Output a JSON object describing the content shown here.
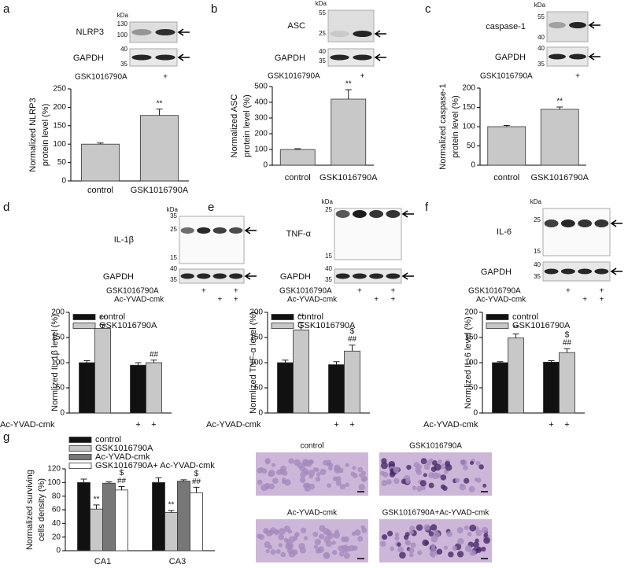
{
  "chart_data": [
    {
      "panel": "a",
      "type": "bar",
      "ylabel": [
        "Normalized NLRP3",
        "protein level (%)"
      ],
      "categories": [
        "control",
        "GSK1016790A"
      ],
      "values": [
        100,
        178
      ],
      "errors": [
        3,
        17
      ],
      "labels": [
        [],
        [
          "**"
        ]
      ],
      "color": "#c8c8c8",
      "ylim": [
        0,
        250
      ],
      "yticks": [
        0,
        50,
        100,
        150,
        200,
        250
      ]
    },
    {
      "panel": "b",
      "type": "bar",
      "ylabel": [
        "Normalized ASC",
        "protein level (%)"
      ],
      "categories": [
        "control",
        "GSK1016790A"
      ],
      "values": [
        100,
        420
      ],
      "errors": [
        5,
        60
      ],
      "labels": [
        [],
        [
          "**"
        ]
      ],
      "color": "#c8c8c8",
      "ylim": [
        0,
        500
      ],
      "yticks": [
        0,
        100,
        200,
        300,
        400,
        500
      ]
    },
    {
      "panel": "c",
      "type": "bar",
      "ylabel": [
        "Normalized caspase-1",
        "protein level (%)"
      ],
      "categories": [
        "control",
        "GSK1016790A"
      ],
      "values": [
        100,
        145
      ],
      "errors": [
        3,
        6
      ],
      "labels": [
        [],
        [
          "**"
        ]
      ],
      "color": "#c8c8c8",
      "ylim": [
        0,
        200
      ],
      "yticks": [
        0,
        50,
        100,
        150,
        200
      ]
    },
    {
      "panel": "d",
      "type": "bar",
      "ylabel": [
        "Normlized IL-1β level (%)"
      ],
      "categories": [
        null,
        null
      ],
      "series": [
        {
          "name": "control",
          "color": "#111111",
          "values": [
            100,
            95
          ],
          "errors": [
            4,
            5
          ],
          "labels": [
            [],
            []
          ]
        },
        {
          "name": "GSK1016790A",
          "color": "#c8c8c8",
          "values": [
            168,
            100
          ],
          "errors": [
            8,
            5
          ],
          "labels": [
            [
              "**"
            ],
            [
              "##"
            ]
          ]
        }
      ],
      "treatment": "Ac-YVAD-cmk",
      "treatment_marks": [
        [
          null,
          null
        ],
        [
          "+",
          "+"
        ]
      ],
      "ylim": [
        0,
        200
      ],
      "yticks": [
        0,
        50,
        100,
        150,
        200
      ]
    },
    {
      "panel": "e",
      "type": "bar",
      "ylabel": [
        "Normlized TNF-α level (%)"
      ],
      "categories": [
        null,
        null
      ],
      "series": [
        {
          "name": "control",
          "color": "#111111",
          "values": [
            100,
            96
          ],
          "errors": [
            5,
            6
          ],
          "labels": [
            [],
            []
          ]
        },
        {
          "name": "GSK1016790A",
          "color": "#c8c8c8",
          "values": [
            165,
            123
          ],
          "errors": [
            15,
            12
          ],
          "labels": [
            [
              "**"
            ],
            [
              "$",
              "##"
            ]
          ]
        }
      ],
      "treatment": "Ac-YVAD-cmk",
      "treatment_marks": [
        [
          null,
          null
        ],
        [
          "+",
          "+"
        ]
      ],
      "ylim": [
        0,
        200
      ],
      "yticks": [
        0,
        50,
        100,
        150,
        200
      ]
    },
    {
      "panel": "f",
      "type": "bar",
      "ylabel": [
        "Normlized IL-6 level (%)"
      ],
      "categories": [
        null,
        null
      ],
      "series": [
        {
          "name": "control",
          "color": "#111111",
          "values": [
            100,
            101
          ],
          "errors": [
            2,
            3
          ],
          "labels": [
            [],
            []
          ]
        },
        {
          "name": "GSK1016790A",
          "color": "#c8c8c8",
          "values": [
            149,
            120
          ],
          "errors": [
            8,
            8
          ],
          "labels": [
            [
              "**"
            ],
            [
              "$",
              "##"
            ]
          ]
        }
      ],
      "treatment": "Ac-YVAD-cmk",
      "treatment_marks": [
        [
          null,
          null
        ],
        [
          "+",
          "+"
        ]
      ],
      "ylim": [
        0,
        200
      ],
      "yticks": [
        0,
        50,
        100,
        150,
        200
      ]
    },
    {
      "panel": "g",
      "type": "bar",
      "ylabel": [
        "Normalized surviving",
        "cells density (%)"
      ],
      "categories": [
        "CA1",
        "CA3"
      ],
      "series": [
        {
          "name": "control",
          "color": "#111111",
          "values": [
            100,
            100
          ],
          "errors": [
            5,
            7
          ],
          "labels": [
            [],
            []
          ]
        },
        {
          "name": "GSK1016790A",
          "color": "#c8c8c8",
          "values": [
            61,
            56
          ],
          "errors": [
            6,
            3
          ],
          "labels": [
            [
              "**"
            ],
            [
              "**"
            ]
          ]
        },
        {
          "name": "Ac-YVAD-cmk",
          "color": "#777777",
          "values": [
            99,
            102
          ],
          "errors": [
            2,
            2
          ],
          "labels": [
            [],
            []
          ]
        },
        {
          "name": "GSK1016790A+ Ac-YVAD-cmk",
          "color": "#ffffff",
          "values": [
            89,
            85
          ],
          "errors": [
            5,
            8
          ],
          "labels": [
            [
              "$",
              "##"
            ],
            [
              "$",
              "##"
            ]
          ]
        }
      ],
      "ylim": [
        0,
        120
      ],
      "yticks": [
        0,
        20,
        40,
        60,
        80,
        100,
        120
      ]
    }
  ],
  "blots": [
    {
      "kda": "kDa",
      "target": "NLRP3",
      "target_markers": [
        130,
        100
      ],
      "loading": "GAPDH",
      "loading_markers": [
        40,
        35
      ],
      "treatments": [
        {
          "name": "GSK1016790A",
          "lanes": [
            null,
            "+"
          ]
        }
      ]
    },
    {
      "kda": "kDa",
      "target": "ASC",
      "target_markers": [
        55,
        25
      ],
      "loading": "GAPDH",
      "loading_markers": [
        40,
        35
      ],
      "treatments": [
        {
          "name": "GSK1016790A",
          "lanes": [
            null,
            "+"
          ]
        }
      ]
    },
    {
      "kda": "kDa",
      "target": "caspase-1",
      "target_markers": [
        55,
        40
      ],
      "loading": "GAPDH",
      "loading_markers": [
        40,
        35
      ],
      "treatments": [
        {
          "name": "GSK1016790A",
          "lanes": [
            null,
            "+"
          ]
        }
      ]
    },
    {
      "kda": "kDa",
      "target": "IL-1β",
      "target_markers": [
        35,
        25,
        15
      ],
      "loading": "GAPDH",
      "loading_markers": [
        40,
        35
      ],
      "treatments": [
        {
          "name": "GSK1016790A",
          "lanes": [
            null,
            "+",
            null,
            "+"
          ]
        },
        {
          "name": "Ac-YVAD-cmk",
          "lanes": [
            null,
            null,
            "+",
            "+"
          ]
        }
      ]
    },
    {
      "kda": "kDa",
      "target": "TNF-α",
      "target_markers": [
        25,
        15
      ],
      "loading": "GAPDH",
      "loading_markers": [
        40,
        35
      ],
      "treatments": [
        {
          "name": "GSK1016790A",
          "lanes": [
            null,
            "+",
            null,
            "+"
          ]
        },
        {
          "name": "Ac-YVAD-cmk",
          "lanes": [
            null,
            null,
            "+",
            "+"
          ]
        }
      ]
    },
    {
      "kda": "kDa",
      "target": "IL-6",
      "target_markers": [
        25,
        15
      ],
      "loading": "GAPDH",
      "loading_markers": [
        40,
        35
      ],
      "treatments": [
        {
          "name": "GSK1016790A",
          "lanes": [
            null,
            "+",
            null,
            "+"
          ]
        },
        {
          "name": "Ac-YVAD-cmk",
          "lanes": [
            null,
            null,
            "+",
            "+"
          ]
        }
      ]
    }
  ],
  "histology": {
    "labels": [
      "control",
      "GSK1016790A",
      "Ac-YVAD-cmk",
      "GSK1016790A+Ac-YVAD-cmk"
    ]
  }
}
